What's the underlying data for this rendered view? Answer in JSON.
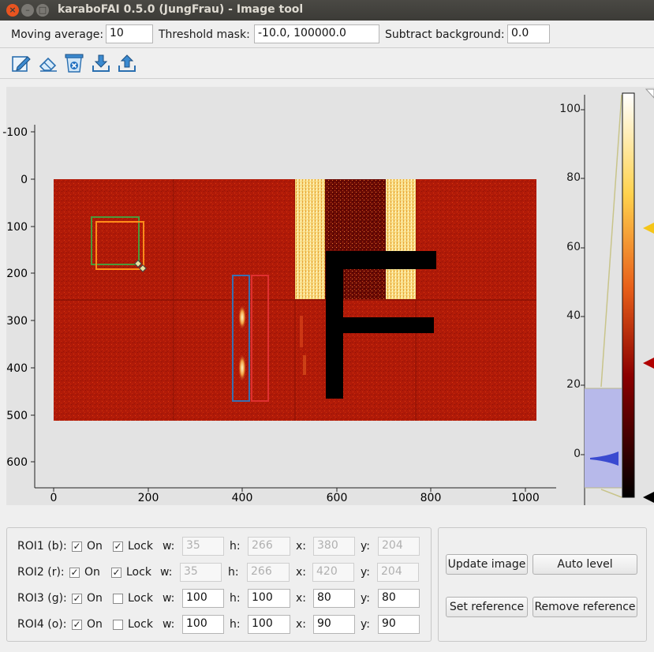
{
  "window": {
    "title": "karaboFAI 0.5.0 (JungFrau) - Image tool"
  },
  "params": {
    "moving_average_label": "Moving average:",
    "moving_average_value": "10",
    "threshold_label": "Threshold mask:",
    "threshold_value": "-10.0, 100000.0",
    "subtract_bg_label": "Subtract background:",
    "subtract_bg_value": "0.0"
  },
  "toolbar": [
    "pencil-icon",
    "eraser-icon",
    "clear-mask-icon",
    "download-icon",
    "upload-icon"
  ],
  "image_view": {
    "x_ticks": [
      "0",
      "200",
      "400",
      "600",
      "800",
      "1000"
    ],
    "y_ticks": [
      "-100",
      "0",
      "100",
      "200",
      "300",
      "400",
      "500",
      "600"
    ]
  },
  "histogram": {
    "ticks": [
      "100",
      "80",
      "60",
      "40",
      "20",
      "0"
    ],
    "colors": {
      "low": "#000000",
      "mid1": "#8b0000",
      "mid2": "#e8601a",
      "mid3": "#ffd24d",
      "high": "#ffffff"
    },
    "handle_colors": {
      "top": "#ffffff",
      "upper": "#f5c518",
      "lower": "#b00000",
      "bottom": "#000000"
    }
  },
  "rois": [
    {
      "label": "ROI1 (b):",
      "on_label": "On",
      "on": true,
      "lock_label": "Lock",
      "lock": true,
      "w_label": "w:",
      "w": "35",
      "h_label": "h:",
      "h": "266",
      "x_label": "x:",
      "x": "380",
      "y_label": "y:",
      "y": "204",
      "color": "#3b6fb0"
    },
    {
      "label": "ROI2 (r):",
      "on_label": "On",
      "on": true,
      "lock_label": "Lock",
      "lock": true,
      "w_label": "w:",
      "w": "35",
      "h_label": "h:",
      "h": "266",
      "x_label": "x:",
      "x": "420",
      "y_label": "y:",
      "y": "204",
      "color": "#e03030"
    },
    {
      "label": "ROI3 (g):",
      "on_label": "On",
      "on": true,
      "lock_label": "Lock",
      "lock": false,
      "w_label": "w:",
      "w": "100",
      "h_label": "h:",
      "h": "100",
      "x_label": "x:",
      "x": "80",
      "y_label": "y:",
      "y": "80",
      "color": "#4a9a3a"
    },
    {
      "label": "ROI4 (o):",
      "on_label": "On",
      "on": true,
      "lock_label": "Lock",
      "lock": false,
      "w_label": "w:",
      "w": "100",
      "h_label": "h:",
      "h": "100",
      "x_label": "x:",
      "x": "90",
      "y_label": "y:",
      "y": "90",
      "color": "#ff8c1a"
    }
  ],
  "buttons": {
    "update_image": "Update image",
    "auto_level": "Auto level",
    "set_reference": "Set reference",
    "remove_reference": "Remove reference"
  }
}
